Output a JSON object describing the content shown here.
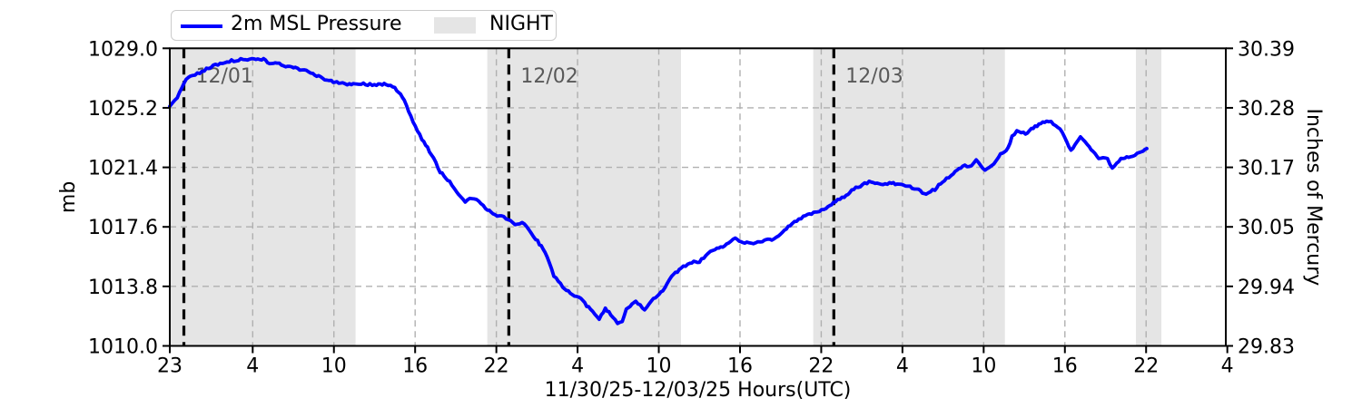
{
  "page": {
    "background": "#ffffff"
  },
  "chart_data": {
    "type": "line",
    "title": "",
    "xlabel": "11/30/25-12/03/25  Hours(UTC)",
    "ylabel_left": "mb",
    "ylabel_right": "Inches of Mercury",
    "x_unit": "hours since 11/30/25 23:00 UTC",
    "ylim_left": [
      1010.0,
      1029.0
    ],
    "yticks_left": {
      "values": [
        1029.0,
        1025.2,
        1021.4,
        1017.6,
        1013.8,
        1010.0
      ],
      "labels": [
        "1029.0",
        "1025.2",
        "1021.4",
        "1017.6",
        "1013.8",
        "1010.0"
      ]
    },
    "yticks_right": {
      "labels": [
        "30.39",
        "30.28",
        "30.17",
        "30.05",
        "29.94",
        "29.83"
      ]
    },
    "xticks": {
      "hours": [
        0,
        5,
        11,
        17,
        23,
        29,
        35,
        41,
        47,
        53,
        59,
        65,
        71,
        77
      ],
      "labels": [
        "23",
        "4",
        "10",
        "16",
        "22",
        "4",
        "10",
        "16",
        "22",
        "4",
        "10",
        "16",
        "22",
        "4"
      ]
    },
    "grid": true,
    "legend": {
      "position": "top-left",
      "entries": [
        {
          "label": "2m MSL Pressure",
          "type": "line",
          "color": "#0000ff"
        },
        {
          "label": "NIGHT",
          "type": "patch",
          "color": "#e5e5e5"
        }
      ]
    },
    "night_bands_hours": [
      [
        0,
        12.6
      ],
      [
        22.33,
        36.64
      ],
      [
        46.41,
        60.57
      ],
      [
        70.25,
        72.13
      ]
    ],
    "date_lines": [
      {
        "hour": 0.85,
        "label": "12/01"
      },
      {
        "hour": 23.92,
        "label": "12/02"
      },
      {
        "hour": 47.93,
        "label": "12/03"
      }
    ],
    "series": [
      {
        "name": "2m MSL Pressure",
        "color": "#0000ff",
        "samples": [
          [
            0,
            1025.3
          ],
          [
            0.45,
            1025.9
          ],
          [
            0.85,
            1026.8
          ],
          [
            1.25,
            1027.25
          ],
          [
            1.8,
            1027.45
          ],
          [
            2.35,
            1027.75
          ],
          [
            2.9,
            1028.0
          ],
          [
            3.45,
            1028.15
          ],
          [
            4.0,
            1028.25
          ],
          [
            4.55,
            1028.3
          ],
          [
            5.1,
            1028.35
          ],
          [
            5.8,
            1028.3
          ],
          [
            6.1,
            1028.1
          ],
          [
            6.8,
            1028.05
          ],
          [
            7.45,
            1027.85
          ],
          [
            8.15,
            1027.75
          ],
          [
            8.8,
            1027.6
          ],
          [
            9.45,
            1027.4
          ],
          [
            10.15,
            1027.1
          ],
          [
            10.8,
            1026.9
          ],
          [
            11.5,
            1026.8
          ],
          [
            12.15,
            1026.7
          ],
          [
            12.85,
            1026.75
          ],
          [
            13.5,
            1026.7
          ],
          [
            14.15,
            1026.65
          ],
          [
            14.85,
            1026.7
          ],
          [
            15.5,
            1026.5
          ],
          [
            16.2,
            1025.7
          ],
          [
            16.85,
            1024.3
          ],
          [
            17.5,
            1023.2
          ],
          [
            18.2,
            1022.25
          ],
          [
            18.85,
            1021.1
          ],
          [
            19.55,
            1020.5
          ],
          [
            20.2,
            1019.7
          ],
          [
            20.7,
            1019.2
          ],
          [
            21.2,
            1019.45
          ],
          [
            21.7,
            1019.3
          ],
          [
            22.2,
            1018.8
          ],
          [
            22.9,
            1018.4
          ],
          [
            23.55,
            1018.2
          ],
          [
            23.9,
            1018.1
          ],
          [
            24.55,
            1017.7
          ],
          [
            24.9,
            1017.85
          ],
          [
            25.25,
            1017.6
          ],
          [
            25.9,
            1016.85
          ],
          [
            26.6,
            1016.0
          ],
          [
            27.25,
            1014.5
          ],
          [
            27.9,
            1013.75
          ],
          [
            28.6,
            1013.3
          ],
          [
            29.25,
            1013.0
          ],
          [
            29.95,
            1012.3
          ],
          [
            30.6,
            1011.7
          ],
          [
            31.05,
            1012.4
          ],
          [
            31.45,
            1012.0
          ],
          [
            31.95,
            1011.45
          ],
          [
            32.3,
            1011.6
          ],
          [
            32.6,
            1012.3
          ],
          [
            33.3,
            1012.85
          ],
          [
            33.95,
            1012.3
          ],
          [
            34.6,
            1013.0
          ],
          [
            35.3,
            1013.55
          ],
          [
            35.95,
            1014.4
          ],
          [
            36.65,
            1015.0
          ],
          [
            37.3,
            1015.3
          ],
          [
            38.0,
            1015.4
          ],
          [
            38.65,
            1015.9
          ],
          [
            39.3,
            1016.2
          ],
          [
            40.0,
            1016.45
          ],
          [
            40.65,
            1016.85
          ],
          [
            41.35,
            1016.6
          ],
          [
            42.0,
            1016.55
          ],
          [
            42.65,
            1016.7
          ],
          [
            43.35,
            1016.8
          ],
          [
            44.0,
            1017.1
          ],
          [
            44.7,
            1017.7
          ],
          [
            45.35,
            1018.1
          ],
          [
            46.0,
            1018.4
          ],
          [
            46.7,
            1018.55
          ],
          [
            47.35,
            1018.75
          ],
          [
            47.9,
            1019.15
          ],
          [
            48.7,
            1019.5
          ],
          [
            49.4,
            1020.0
          ],
          [
            50.05,
            1020.3
          ],
          [
            50.7,
            1020.5
          ],
          [
            51.4,
            1020.3
          ],
          [
            52.05,
            1020.4
          ],
          [
            52.75,
            1020.3
          ],
          [
            53.4,
            1020.2
          ],
          [
            54.05,
            1020.0
          ],
          [
            54.75,
            1019.7
          ],
          [
            55.4,
            1020.0
          ],
          [
            56.1,
            1020.6
          ],
          [
            56.75,
            1021.0
          ],
          [
            57.45,
            1021.45
          ],
          [
            58.1,
            1021.55
          ],
          [
            58.45,
            1021.85
          ],
          [
            59.1,
            1021.2
          ],
          [
            59.75,
            1021.55
          ],
          [
            60.1,
            1022.1
          ],
          [
            60.8,
            1022.6
          ],
          [
            61.1,
            1023.35
          ],
          [
            61.45,
            1023.75
          ],
          [
            62.1,
            1023.55
          ],
          [
            62.8,
            1024.0
          ],
          [
            63.65,
            1024.4
          ],
          [
            64.15,
            1024.2
          ],
          [
            64.8,
            1023.65
          ],
          [
            65.45,
            1022.5
          ],
          [
            66.15,
            1023.3
          ],
          [
            66.8,
            1022.7
          ],
          [
            67.5,
            1022.0
          ],
          [
            68.15,
            1021.95
          ],
          [
            68.5,
            1021.3
          ],
          [
            69.15,
            1021.95
          ],
          [
            69.85,
            1022.1
          ],
          [
            70.5,
            1022.3
          ],
          [
            71.05,
            1022.6
          ]
        ]
      }
    ],
    "style": {
      "line_color": "#0000ff",
      "night_color": "#e5e5e5",
      "grid_color": "#b0b0b0",
      "date_line_color": "#000000",
      "date_label_color": "#595959",
      "spine_color": "#000000"
    }
  }
}
